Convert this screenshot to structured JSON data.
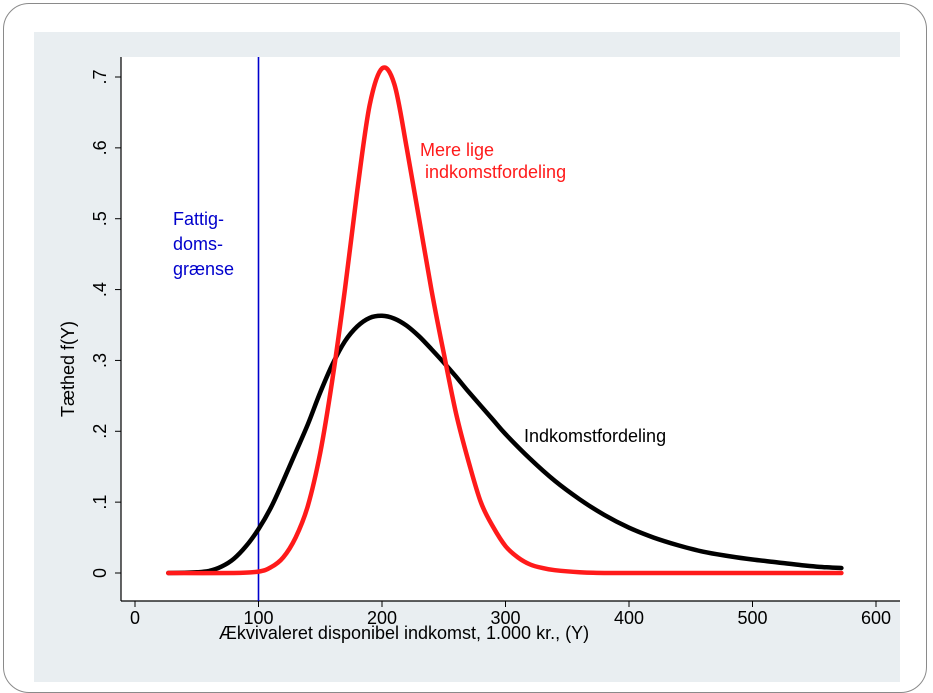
{
  "chart_data": {
    "type": "line",
    "title": "",
    "xlabel": "Ækvivaleret disponibel indkomst, 1.000 kr., (Y)",
    "ylabel": "Tæthed f(Y)",
    "xlim": [
      0,
      600
    ],
    "ylim": [
      0,
      0.7
    ],
    "x_ticks": [
      0,
      100,
      200,
      300,
      400,
      500,
      600
    ],
    "x_tick_labels": [
      "0",
      "100",
      "200",
      "300",
      "400",
      "500",
      "600"
    ],
    "y_ticks": [
      0,
      0.1,
      0.2,
      0.3,
      0.4,
      0.5,
      0.6,
      0.7
    ],
    "y_tick_labels": [
      "0",
      ".1",
      ".2",
      ".3",
      ".4",
      ".5",
      ".6",
      ".7"
    ],
    "grid": false,
    "legend": "none",
    "series": [
      {
        "name": "Indkomstfordeling",
        "color": "#000000",
        "x": [
          27,
          40,
          50,
          60,
          70,
          80,
          90,
          100,
          110,
          120,
          130,
          140,
          150,
          160,
          170,
          180,
          190,
          200,
          210,
          220,
          230,
          240,
          250,
          260,
          270,
          280,
          290,
          300,
          320,
          340,
          360,
          380,
          400,
          420,
          440,
          460,
          480,
          500,
          520,
          540,
          560,
          572
        ],
        "values": [
          0.0,
          0.0003,
          0.001,
          0.003,
          0.009,
          0.02,
          0.038,
          0.062,
          0.092,
          0.13,
          0.17,
          0.21,
          0.255,
          0.295,
          0.327,
          0.348,
          0.36,
          0.363,
          0.359,
          0.349,
          0.334,
          0.316,
          0.297,
          0.277,
          0.256,
          0.236,
          0.216,
          0.196,
          0.161,
          0.13,
          0.104,
          0.082,
          0.064,
          0.05,
          0.039,
          0.03,
          0.024,
          0.019,
          0.015,
          0.011,
          0.008,
          0.007
        ]
      },
      {
        "name": "Mere lige indkomstfordeling",
        "color": "#ff1a1a",
        "x": [
          27,
          80,
          100,
          110,
          120,
          130,
          140,
          150,
          160,
          170,
          180,
          190,
          200,
          210,
          220,
          230,
          240,
          250,
          260,
          270,
          280,
          290,
          300,
          310,
          320,
          330,
          340,
          360,
          380,
          400,
          450,
          500,
          572
        ],
        "values": [
          0.0,
          0.0,
          0.002,
          0.008,
          0.022,
          0.05,
          0.095,
          0.17,
          0.275,
          0.4,
          0.54,
          0.66,
          0.712,
          0.69,
          0.6,
          0.5,
          0.4,
          0.31,
          0.225,
          0.158,
          0.1,
          0.065,
          0.038,
          0.022,
          0.012,
          0.007,
          0.004,
          0.001,
          0.0,
          0.0,
          0.0,
          0.0,
          0.0
        ]
      }
    ],
    "reference_lines": [
      {
        "axis": "x",
        "value": 100,
        "color": "#0000cc",
        "label_lines": [
          "Fattig-",
          "doms-",
          "grænse"
        ]
      }
    ],
    "annotations": {
      "red_label_lines": [
        "Mere lige",
        " indkomstfordeling"
      ],
      "black_label": "Indkomstfordeling"
    }
  }
}
